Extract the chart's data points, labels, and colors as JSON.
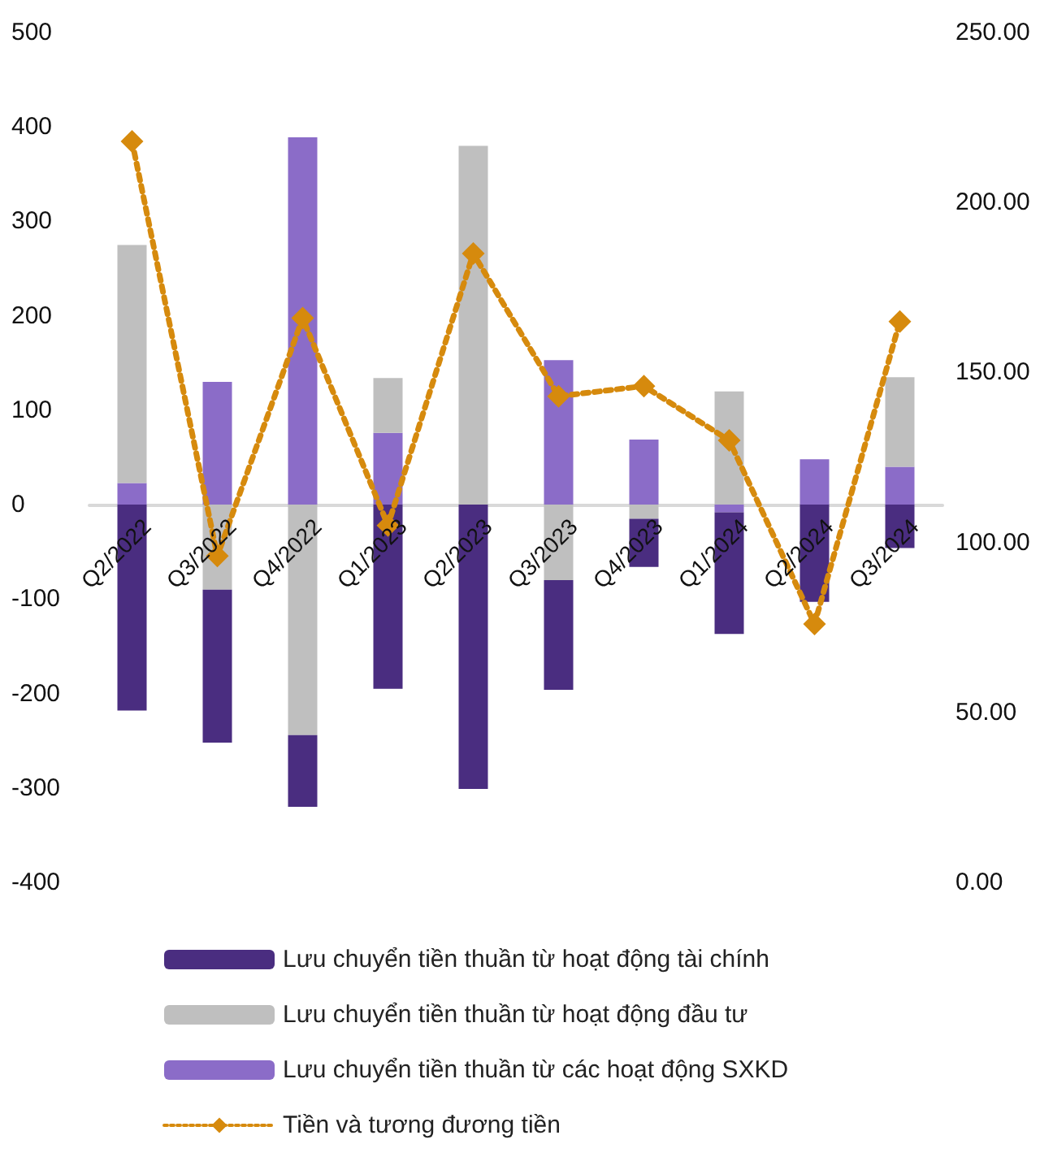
{
  "chart_data": {
    "type": "bar",
    "stacked": true,
    "categories": [
      "Q2/2022",
      "Q3/2022",
      "Q4/2022",
      "Q1/2023",
      "Q2/2023",
      "Q3/2023",
      "Q4/2023",
      "Q1/2024",
      "Q2/2024",
      "Q3/2024"
    ],
    "series": [
      {
        "name": "Lưu chuyển tiền thuần từ các hoạt động SXKD",
        "color": "#8b6cc8",
        "values": [
          23,
          130,
          389,
          76,
          0,
          153,
          69,
          -8,
          48,
          40
        ]
      },
      {
        "name": "Lưu chuyển tiền thuần từ hoạt động đầu tư",
        "color": "#bfbfbf",
        "values": [
          252,
          -90,
          -244,
          58,
          380,
          -80,
          -15,
          120,
          0,
          95
        ]
      },
      {
        "name": "Lưu chuyển tiền thuần từ hoạt động tài chính",
        "color": "#4a2d80",
        "values": [
          -218,
          -162,
          -76,
          -195,
          -301,
          -116,
          -51,
          -129,
          -103,
          -46
        ]
      },
      {
        "name": "Tiền và tương đương tiền",
        "type": "line",
        "axis": "y2",
        "color": "#d68a0d",
        "marker": "diamond",
        "line_style": "dotted",
        "values": [
          218,
          96,
          166,
          105,
          185,
          143,
          146,
          130,
          76,
          165
        ]
      }
    ],
    "ylim": [
      -400,
      500
    ],
    "yticks": [
      -400,
      -300,
      -200,
      -100,
      0,
      100,
      200,
      300,
      400,
      500
    ],
    "y2lim": [
      0,
      250
    ],
    "y2ticks": [
      {
        "value": 0,
        "label": "0.00"
      },
      {
        "value": 50,
        "label": "50.00"
      },
      {
        "value": 100,
        "label": "100.00"
      },
      {
        "value": 150,
        "label": "150.00"
      },
      {
        "value": 200,
        "label": "200.00"
      },
      {
        "value": 250,
        "label": "250.00"
      }
    ],
    "grid": false,
    "legend": "bottom"
  }
}
